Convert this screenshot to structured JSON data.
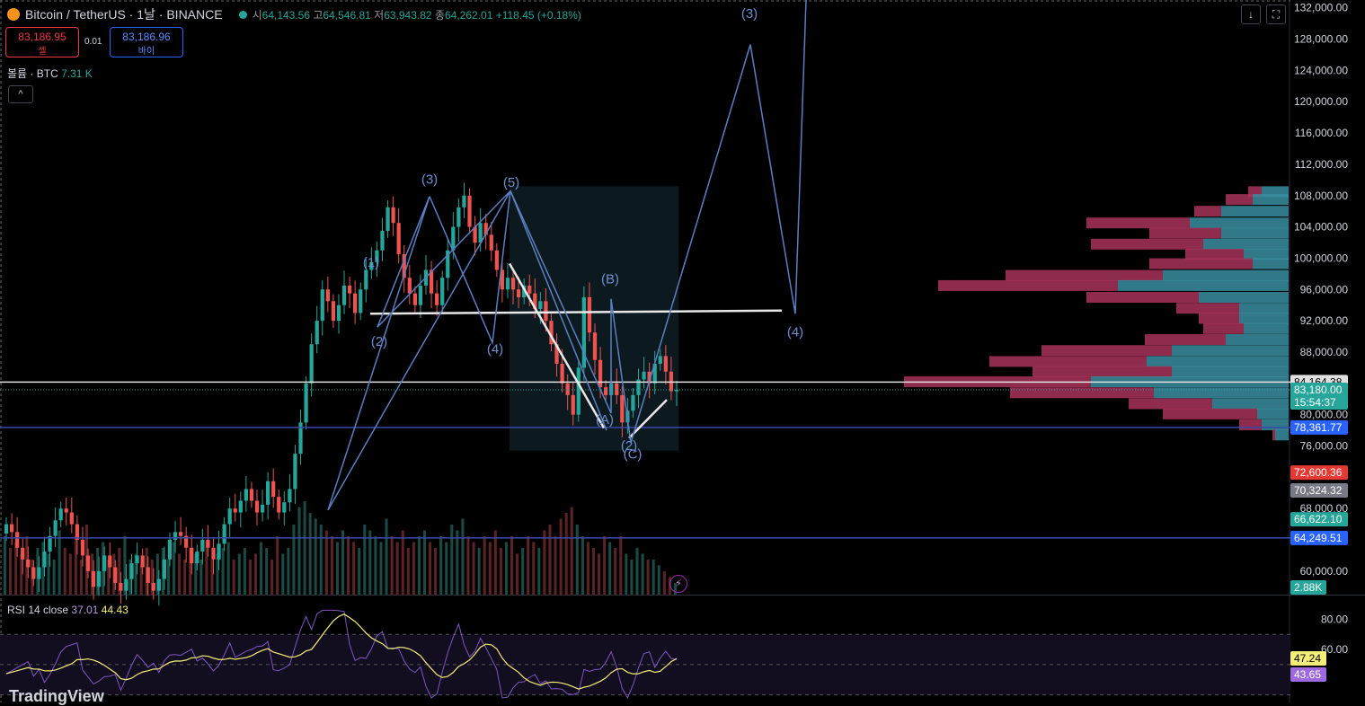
{
  "header": {
    "symbol": "Bitcoin / TetherUS · 1날 · BINANCE",
    "open_label": "시",
    "open": "64,143.56",
    "high_label": "고",
    "high": "64,546.81",
    "low_label": "저",
    "low": "63,943.82",
    "close_label": "종",
    "close": "64,262.01",
    "change": "+118.45 (+0.18%)"
  },
  "trade": {
    "sell_price": "83,186.95",
    "sell_label": "셀",
    "spread": "0.01",
    "buy_price": "83,186.96",
    "buy_label": "바이"
  },
  "volume_legend": {
    "label": "볼륨 · BTC",
    "value": "7.31 K"
  },
  "collapse_icon": "chevron-up-icon",
  "rsi_legend": {
    "label": "RSI 14 close",
    "rsi": "37.01",
    "ma": "44.43"
  },
  "toolbar": {
    "download_icon": "arrow-down-icon",
    "fullscreen_icon": "fullscreen-icon"
  },
  "logo": "TradingView",
  "colors": {
    "up": "#26a69a",
    "down": "#ef5350",
    "wave": "#5b7fc0",
    "rsi": "#7e57c2",
    "rsi_ma": "#f5ed7a",
    "hline": "#3949ab"
  },
  "chart_data": {
    "type": "candlestick",
    "price_axis": {
      "ticks": [
        "132,000.00",
        "128,000.00",
        "124,000.00",
        "120,000.00",
        "116,000.00",
        "112,000.00",
        "108,000.00",
        "104,000.00",
        "100,000.00",
        "96,000.00",
        "92,000.00",
        "88,000.00",
        "80,000.00",
        "76,000.00",
        "68,000.00",
        "60,000.00"
      ],
      "range": [
        57000,
        133000
      ]
    },
    "price_labels": [
      {
        "text": "84,164.38",
        "value": 84164.38,
        "kind": "white"
      },
      {
        "text": "83,180.00",
        "value": 83180,
        "kind": "last"
      },
      {
        "text": "15:54:37",
        "kind": "timer"
      },
      {
        "text": "78,361.77",
        "value": 78361.77,
        "kind": "line"
      },
      {
        "text": "72,600.36",
        "value": 72600.36,
        "kind": "red"
      },
      {
        "text": "70,324.32",
        "value": 70324.32,
        "kind": "gray"
      },
      {
        "text": "66,622.10",
        "value": 66622.1,
        "kind": "green"
      },
      {
        "text": "64,249.51",
        "value": 64249.51,
        "kind": "line"
      },
      {
        "text": "2.88K",
        "kind": "volume"
      }
    ],
    "horizontal_lines": [
      84164.38,
      78361.77,
      64249.51
    ],
    "trend_line": {
      "from": 92900,
      "to": 93300
    },
    "wave_labels": [
      {
        "text": "(1)",
        "price": 98900
      },
      {
        "text": "(2)",
        "price": 88800
      },
      {
        "text": "(3)",
        "price": 109500
      },
      {
        "text": "(4)",
        "price": 87800
      },
      {
        "text": "(5)",
        "price": 109100
      },
      {
        "text": "(B)",
        "price": 96800
      },
      {
        "text": "(A)",
        "price": 78800
      },
      {
        "text": "(2)",
        "price": 75500
      },
      {
        "text": "(C)",
        "price": 74400
      },
      {
        "text": "(3)",
        "price": 130700
      },
      {
        "text": "(4)",
        "price": 90000
      }
    ],
    "wave_path": [
      67800,
      107900,
      91200,
      108000,
      89200,
      108600,
      80200,
      94800,
      76400,
      127300,
      92900,
      133000
    ],
    "closes": [
      66000,
      65000,
      63000,
      61500,
      60500,
      59000,
      60500,
      62500,
      64500,
      66500,
      68000,
      67500,
      66000,
      64000,
      62000,
      60000,
      58000,
      60000,
      62000,
      60500,
      58500,
      57500,
      59000,
      61000,
      62000,
      60500,
      58500,
      57500,
      59000,
      61500,
      64000,
      65000,
      64500,
      63000,
      61000,
      62500,
      64000,
      63000,
      61500,
      63500,
      66000,
      68000,
      67500,
      69000,
      70500,
      69000,
      67500,
      68500,
      71500,
      69500,
      67500,
      68800,
      70500,
      75000,
      79000,
      84000,
      89000,
      92000,
      96000,
      94500,
      92000,
      94000,
      96500,
      95500,
      93000,
      96000,
      98500,
      99500,
      101000,
      103500,
      106500,
      104500,
      100500,
      97500,
      95500,
      94000,
      96500,
      98500,
      95500,
      94000,
      97500,
      101000,
      104000,
      106500,
      108000,
      104000,
      102000,
      104500,
      103000,
      101000,
      98500,
      96000,
      97500,
      96000,
      95000,
      96500,
      95500,
      93500,
      94500,
      92000,
      89000,
      86500,
      84000,
      82500,
      80000,
      86000,
      95000,
      90500,
      87000,
      83500,
      82500,
      84000,
      82500,
      79000,
      80500,
      82500,
      84500,
      85500,
      84000,
      86500,
      87500,
      85500,
      83000,
      83180
    ],
    "volume_relative": [
      0.5,
      0.4,
      0.45,
      0.35,
      0.5,
      0.3,
      0.4,
      0.45,
      0.35,
      0.3,
      0.55,
      0.4,
      0.35,
      0.5,
      0.3,
      0.6,
      0.35,
      0.4,
      0.45,
      0.3,
      0.35,
      0.4,
      0.5,
      0.3,
      0.35,
      0.25,
      0.4,
      0.3,
      0.35,
      0.4,
      0.3,
      0.45,
      0.35,
      0.3,
      0.4,
      0.35,
      0.3,
      0.45,
      0.3,
      0.35,
      0.4,
      0.45,
      0.3,
      0.35,
      0.4,
      0.3,
      0.35,
      0.45,
      0.4,
      0.3,
      0.5,
      0.35,
      0.4,
      0.6,
      0.75,
      0.8,
      0.7,
      0.65,
      0.6,
      0.55,
      0.5,
      0.45,
      0.55,
      0.5,
      0.45,
      0.4,
      0.6,
      0.55,
      0.5,
      0.45,
      0.65,
      0.5,
      0.45,
      0.55,
      0.4,
      0.45,
      0.5,
      0.55,
      0.45,
      0.4,
      0.5,
      0.45,
      0.6,
      0.55,
      0.65,
      0.5,
      0.45,
      0.4,
      0.5,
      0.45,
      0.55,
      0.4,
      0.45,
      0.5,
      0.35,
      0.4,
      0.5,
      0.45,
      0.4,
      0.55,
      0.6,
      0.5,
      0.65,
      0.7,
      0.75,
      0.6,
      0.5,
      0.45,
      0.4,
      0.35,
      0.5,
      0.45,
      0.4,
      0.5,
      0.35,
      0.3,
      0.4,
      0.35,
      0.3,
      0.3,
      0.25,
      0.2,
      0.15,
      0.1
    ],
    "volume_profile": [
      {
        "price": 108500,
        "up": 30,
        "down": 15
      },
      {
        "price": 107500,
        "up": 40,
        "down": 30
      },
      {
        "price": 106000,
        "up": 75,
        "down": 30
      },
      {
        "price": 104500,
        "up": 110,
        "down": 115
      },
      {
        "price": 103200,
        "up": 75,
        "down": 80
      },
      {
        "price": 101800,
        "up": 95,
        "down": 125
      },
      {
        "price": 100500,
        "up": 50,
        "down": 65
      },
      {
        "price": 99300,
        "up": 40,
        "down": 115
      },
      {
        "price": 97800,
        "up": 140,
        "down": 175
      },
      {
        "price": 96500,
        "up": 190,
        "down": 200
      },
      {
        "price": 95000,
        "up": 100,
        "down": 125
      },
      {
        "price": 93600,
        "up": 55,
        "down": 70
      },
      {
        "price": 92300,
        "up": 55,
        "down": 45
      },
      {
        "price": 91000,
        "up": 50,
        "down": 45
      },
      {
        "price": 89600,
        "up": 70,
        "down": 90
      },
      {
        "price": 88200,
        "up": 130,
        "down": 145
      },
      {
        "price": 86800,
        "up": 158,
        "down": 175
      },
      {
        "price": 85500,
        "up": 130,
        "down": 155
      },
      {
        "price": 84200,
        "up": 220,
        "down": 208
      },
      {
        "price": 82800,
        "up": 150,
        "down": 160
      },
      {
        "price": 81400,
        "up": 85,
        "down": 93
      },
      {
        "price": 80100,
        "up": 35,
        "down": 105
      },
      {
        "price": 78700,
        "up": 30,
        "down": 25
      },
      {
        "price": 77400,
        "up": 15,
        "down": 3
      }
    ],
    "rsi": {
      "ticks": [
        "80.00",
        "60.00"
      ],
      "labels": [
        {
          "text": "47.24",
          "kind": "ma"
        },
        {
          "text": "43.65",
          "kind": "rsi"
        }
      ],
      "range": [
        25,
        88
      ]
    }
  }
}
